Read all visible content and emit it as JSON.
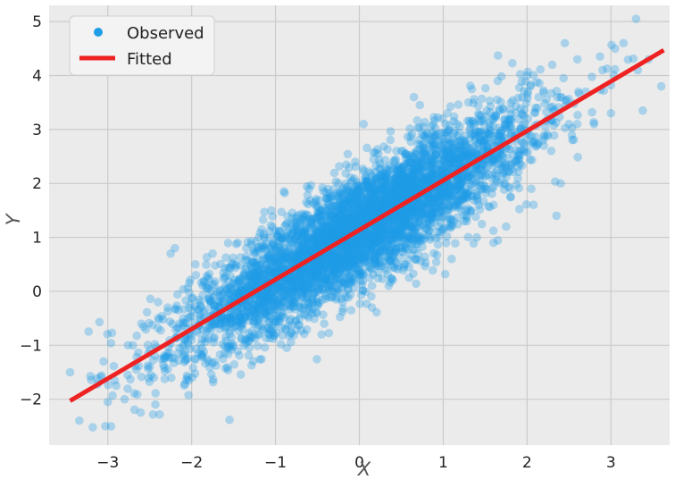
{
  "chart_data": {
    "type": "scatter",
    "xlabel": "X",
    "ylabel": "Y",
    "xlim": [
      -3.7,
      3.7
    ],
    "ylim": [
      -2.85,
      5.3
    ],
    "xticks": [
      -3,
      -2,
      -1,
      0,
      1,
      2,
      3
    ],
    "yticks": [
      -2,
      -1,
      0,
      1,
      2,
      3,
      4,
      5
    ],
    "tick_labels_x": [
      "−3",
      "−2",
      "−1",
      "0",
      "1",
      "2",
      "3"
    ],
    "tick_labels_y": [
      "−2",
      "−1",
      "0",
      "1",
      "2",
      "3",
      "4",
      "5"
    ],
    "grid": true,
    "legend_position": "top-left",
    "legend": [
      {
        "label": "Observed",
        "marker": "point",
        "color": "#1f9de6"
      },
      {
        "label": "Fitted",
        "marker": "line",
        "color": "#ee2222"
      }
    ],
    "series": [
      {
        "name": "Observed",
        "kind": "scatter",
        "color": "#1f9de6",
        "approx_point_count": 5000,
        "points": [
          [
            -3.45,
            -1.5
          ],
          [
            -3.18,
            -2.52
          ],
          [
            -3.1,
            -0.57
          ],
          [
            -2.95,
            -0.77
          ],
          [
            -3.05,
            -1.3
          ],
          [
            -2.9,
            -1.75
          ],
          [
            -2.8,
            -2.0
          ],
          [
            -2.7,
            -1.0
          ],
          [
            -2.6,
            -0.6
          ],
          [
            -2.5,
            -1.4
          ],
          [
            -2.4,
            -0.2
          ],
          [
            -2.3,
            -1.2
          ],
          [
            -2.2,
            0.8
          ],
          [
            -2.1,
            -0.5
          ],
          [
            -2.05,
            -1.6
          ],
          [
            -2.0,
            -0.9
          ],
          [
            -1.95,
            0.3
          ],
          [
            -1.9,
            -0.2
          ],
          [
            -1.8,
            -1.3
          ],
          [
            -1.75,
            0.7
          ],
          [
            -1.7,
            -0.4
          ],
          [
            -1.6,
            0.1
          ],
          [
            -1.5,
            -1.0
          ],
          [
            -1.45,
            0.9
          ],
          [
            -1.4,
            -0.3
          ],
          [
            -1.3,
            0.5
          ],
          [
            -1.25,
            -0.8
          ],
          [
            -1.2,
            1.0
          ],
          [
            -1.1,
            0.2
          ],
          [
            -1.05,
            1.5
          ],
          [
            -1.0,
            -0.5
          ],
          [
            -0.95,
            0.7
          ],
          [
            -0.9,
            1.85
          ],
          [
            -0.85,
            0.0
          ],
          [
            -0.8,
            1.2
          ],
          [
            -0.7,
            -0.3
          ],
          [
            -0.65,
            0.9
          ],
          [
            -0.6,
            1.9
          ],
          [
            -0.5,
            0.3
          ],
          [
            -0.45,
            -0.8
          ],
          [
            -0.4,
            1.4
          ],
          [
            -0.3,
            0.6
          ],
          [
            -0.25,
            2.0
          ],
          [
            -0.2,
            -0.2
          ],
          [
            -0.1,
            1.1
          ],
          [
            -0.05,
            2.4
          ],
          [
            0.0,
            0.4
          ],
          [
            0.05,
            3.1
          ],
          [
            0.1,
            1.6
          ],
          [
            0.15,
            -0.3
          ],
          [
            0.2,
            0.9
          ],
          [
            0.3,
            2.2
          ],
          [
            0.35,
            0.1
          ],
          [
            0.4,
            1.3
          ],
          [
            0.5,
            2.6
          ],
          [
            0.55,
            0.5
          ],
          [
            0.6,
            1.7
          ],
          [
            0.65,
            3.6
          ],
          [
            0.7,
            0.7
          ],
          [
            0.8,
            2.0
          ],
          [
            0.85,
            1.0
          ],
          [
            0.9,
            2.9
          ],
          [
            1.0,
            1.4
          ],
          [
            1.05,
            3.3
          ],
          [
            1.1,
            0.6
          ],
          [
            1.2,
            2.4
          ],
          [
            1.25,
            1.8
          ],
          [
            1.3,
            3.5
          ],
          [
            1.4,
            1.0
          ],
          [
            1.5,
            2.8
          ],
          [
            1.6,
            1.6
          ],
          [
            1.65,
            3.9
          ],
          [
            1.7,
            2.3
          ],
          [
            1.75,
            1.2
          ],
          [
            1.8,
            3.2
          ],
          [
            1.9,
            2.6
          ],
          [
            2.0,
            4.0
          ],
          [
            2.05,
            1.9
          ],
          [
            2.1,
            3.4
          ],
          [
            2.2,
            2.7
          ],
          [
            2.3,
            4.2
          ],
          [
            2.4,
            2.0
          ],
          [
            2.45,
            4.6
          ],
          [
            2.5,
            3.1
          ],
          [
            2.6,
            4.3
          ],
          [
            2.7,
            3.7
          ],
          [
            2.8,
            3.1
          ],
          [
            2.9,
            4.1
          ],
          [
            3.0,
            3.3
          ],
          [
            3.05,
            4.5
          ],
          [
            3.15,
            4.6
          ],
          [
            3.3,
            5.05
          ],
          [
            3.32,
            4.1
          ],
          [
            3.38,
            3.35
          ],
          [
            3.45,
            4.3
          ],
          [
            3.6,
            3.8
          ],
          [
            2.35,
            1.4
          ],
          [
            1.6,
            0.9
          ],
          [
            -2.25,
            0.7
          ],
          [
            -3.0,
            -2.05
          ]
        ]
      },
      {
        "name": "Fitted",
        "kind": "line",
        "color": "#ee2222",
        "x": [
          -3.45,
          3.63
        ],
        "y": [
          -2.03,
          4.47
        ]
      }
    ]
  }
}
